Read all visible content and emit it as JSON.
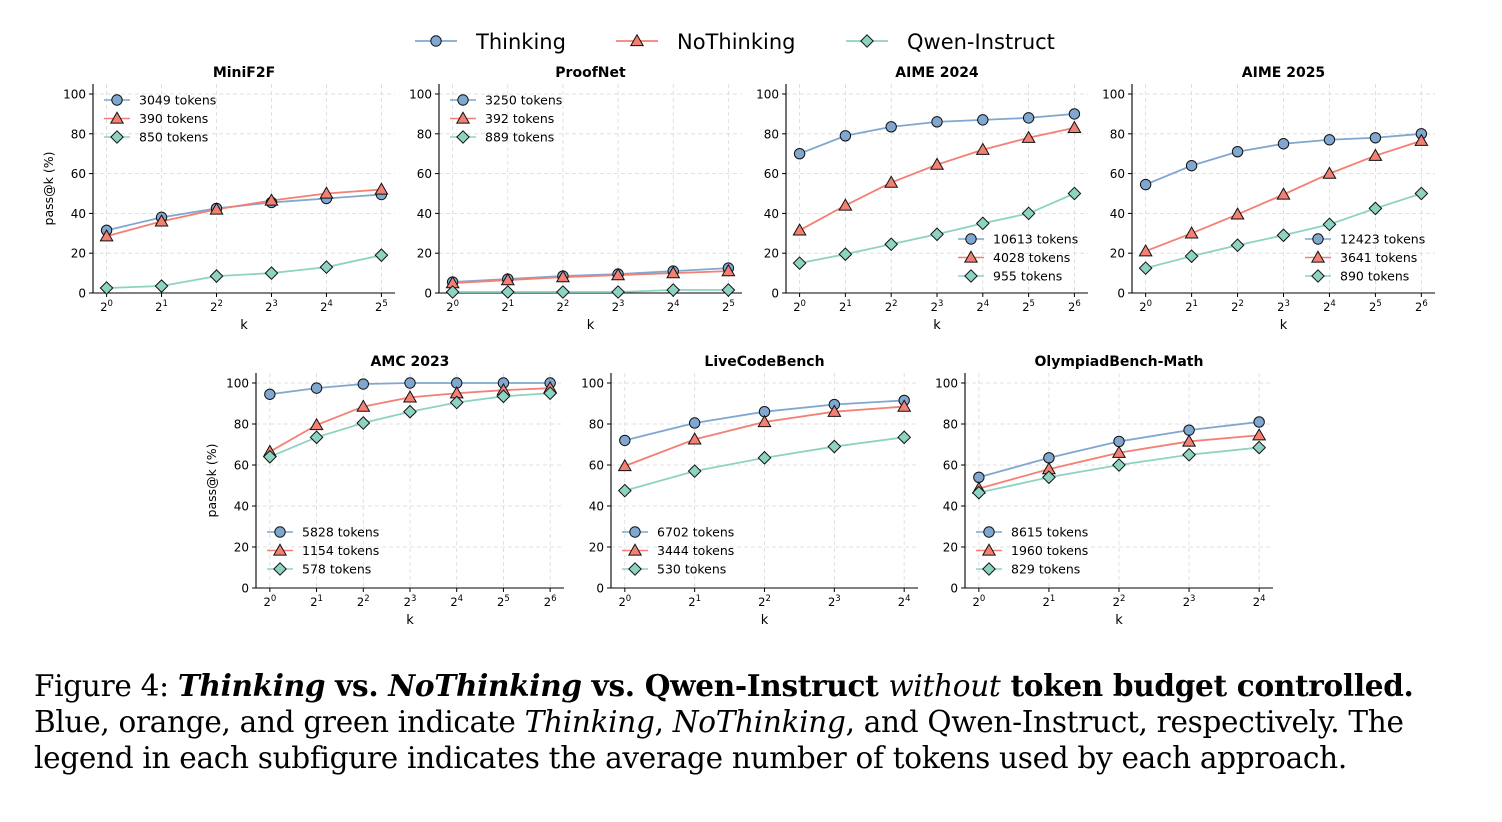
{
  "legend": {
    "items": [
      {
        "label": "Thinking",
        "color": "#7fa7cf",
        "marker": "circle"
      },
      {
        "label": "NoThinking",
        "color": "#f47f73",
        "marker": "triangle"
      },
      {
        "label": "Qwen-Instruct",
        "color": "#8dd3c2",
        "marker": "diamond"
      }
    ]
  },
  "colors": {
    "thinking": "#7fa7cf",
    "nothinking": "#f47f73",
    "qwen": "#8dd3c2"
  },
  "chart_data": [
    {
      "type": "line",
      "title": "MiniF2F",
      "xlabel": "k",
      "ylabel": "pass@k (%)",
      "x": [
        "2^0",
        "2^1",
        "2^2",
        "2^3",
        "2^4",
        "2^5"
      ],
      "ylim": [
        0,
        100
      ],
      "grid": true,
      "legend_position": "upper-left",
      "series": [
        {
          "name": "3049 tokens",
          "values": [
            31.5,
            38,
            42.5,
            45.5,
            47.5,
            49.5
          ]
        },
        {
          "name": "390 tokens",
          "values": [
            28.5,
            36,
            42,
            46.5,
            50,
            52
          ]
        },
        {
          "name": "850 tokens",
          "values": [
            2.5,
            3.5,
            8.5,
            10,
            13,
            19
          ]
        }
      ]
    },
    {
      "type": "line",
      "title": "ProofNet",
      "xlabel": "k",
      "ylabel": "",
      "x": [
        "2^0",
        "2^1",
        "2^2",
        "2^3",
        "2^4",
        "2^5"
      ],
      "ylim": [
        0,
        100
      ],
      "grid": true,
      "legend_position": "upper-left",
      "series": [
        {
          "name": "3250 tokens",
          "values": [
            5.5,
            7,
            8.5,
            9.5,
            11,
            12.5
          ]
        },
        {
          "name": "392 tokens",
          "values": [
            5,
            6.5,
            8,
            9,
            10,
            11
          ]
        },
        {
          "name": "889 tokens",
          "values": [
            0.5,
            0.5,
            0.5,
            0.5,
            1.5,
            1.5
          ]
        }
      ]
    },
    {
      "type": "line",
      "title": "AIME 2024",
      "xlabel": "k",
      "ylabel": "",
      "x": [
        "2^0",
        "2^1",
        "2^2",
        "2^3",
        "2^4",
        "2^5",
        "2^6"
      ],
      "ylim": [
        0,
        100
      ],
      "grid": true,
      "legend_position": "lower-right",
      "series": [
        {
          "name": "10613 tokens",
          "values": [
            70,
            79,
            83.5,
            86,
            87,
            88,
            90
          ]
        },
        {
          "name": "4028 tokens",
          "values": [
            31.5,
            44,
            55.5,
            64.5,
            72,
            78,
            83
          ]
        },
        {
          "name": "955 tokens",
          "values": [
            15,
            19.5,
            24.5,
            29.5,
            35,
            40,
            50
          ]
        }
      ]
    },
    {
      "type": "line",
      "title": "AIME 2025",
      "xlabel": "k",
      "ylabel": "",
      "x": [
        "2^0",
        "2^1",
        "2^2",
        "2^3",
        "2^4",
        "2^5",
        "2^6"
      ],
      "ylim": [
        0,
        100
      ],
      "grid": true,
      "legend_position": "lower-right",
      "series": [
        {
          "name": "12423 tokens",
          "values": [
            54.5,
            64,
            71,
            75,
            77,
            78,
            80
          ]
        },
        {
          "name": "3641 tokens",
          "values": [
            21,
            30,
            39.5,
            49.5,
            60,
            69,
            76.5
          ]
        },
        {
          "name": "890 tokens",
          "values": [
            12.5,
            18.5,
            24,
            29,
            34.5,
            42.5,
            50
          ]
        }
      ]
    },
    {
      "type": "line",
      "title": "AMC 2023",
      "xlabel": "k",
      "ylabel": "pass@k (%)",
      "x": [
        "2^0",
        "2^1",
        "2^2",
        "2^3",
        "2^4",
        "2^5",
        "2^6"
      ],
      "ylim": [
        0,
        100
      ],
      "grid": true,
      "legend_position": "lower-left",
      "series": [
        {
          "name": "5828 tokens",
          "values": [
            94.5,
            97.5,
            99.5,
            100,
            100,
            100,
            100
          ]
        },
        {
          "name": "1154 tokens",
          "values": [
            66.5,
            79.5,
            88.5,
            93,
            95,
            96.5,
            97.5
          ]
        },
        {
          "name": "578 tokens",
          "values": [
            64,
            73.5,
            80.5,
            86,
            90.5,
            93.5,
            95
          ]
        }
      ]
    },
    {
      "type": "line",
      "title": "LiveCodeBench",
      "xlabel": "k",
      "ylabel": "",
      "x": [
        "2^0",
        "2^1",
        "2^2",
        "2^3",
        "2^4"
      ],
      "ylim": [
        0,
        100
      ],
      "grid": true,
      "legend_position": "lower-left",
      "series": [
        {
          "name": "6702 tokens",
          "values": [
            72,
            80.5,
            86,
            89.5,
            91.5
          ]
        },
        {
          "name": "3444 tokens",
          "values": [
            59.5,
            72.5,
            81,
            86,
            88.5
          ]
        },
        {
          "name": "530 tokens",
          "values": [
            47.5,
            57,
            63.5,
            69,
            73.5
          ]
        }
      ]
    },
    {
      "type": "line",
      "title": "OlympiadBench-Math",
      "xlabel": "k",
      "ylabel": "",
      "x": [
        "2^0",
        "2^1",
        "2^2",
        "2^3",
        "2^4"
      ],
      "ylim": [
        0,
        100
      ],
      "grid": true,
      "legend_position": "lower-left",
      "series": [
        {
          "name": "8615 tokens",
          "values": [
            54,
            63.5,
            71.5,
            77,
            81
          ]
        },
        {
          "name": "1960 tokens",
          "values": [
            48.5,
            58,
            66,
            71.5,
            74.5
          ]
        },
        {
          "name": "829 tokens",
          "values": [
            46.5,
            54,
            60,
            65,
            68.5
          ]
        }
      ]
    }
  ],
  "caption": {
    "p1": "Figure 4: ",
    "p2": "Thinking",
    "p3": " vs. ",
    "p4": "NoThinking",
    "p5": " vs. Qwen-Instruct ",
    "p6": "without",
    "p7": " token budget controlled.",
    "p8": " Blue, orange, and green indicate ",
    "p9": "Thinking",
    "p10": ", ",
    "p11": "NoThinking",
    "p12": ", and Qwen-Instruct, respectively. The legend in each subfigure indicates the average number of tokens used by each approach."
  }
}
